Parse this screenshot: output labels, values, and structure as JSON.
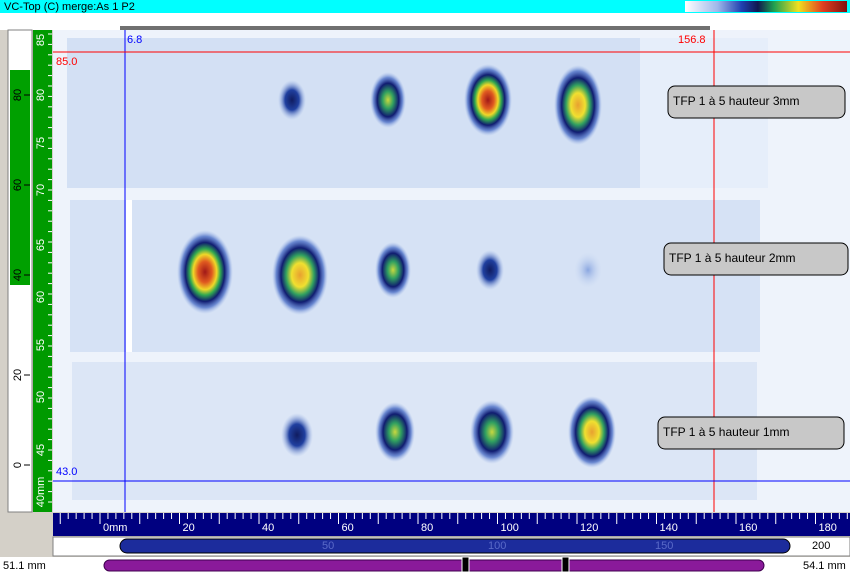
{
  "window": {
    "title": "VC-Top (C) merge:As 1 P2"
  },
  "cursors": {
    "x_blue": "6.8",
    "x_red": "156.8",
    "y_red": "85.0",
    "y_blue": "43.0"
  },
  "annotations": [
    "TFP 1 à 5 hauteur 3mm",
    "TFP 1 à 5 hauteur 2mm",
    "TFP 1 à 5 hauteur 1mm"
  ],
  "outer_ruler": [
    "80",
    "60",
    "40",
    "20",
    "0"
  ],
  "y_ruler": [
    "85",
    "80",
    "75",
    "70",
    "65",
    "60",
    "55",
    "50",
    "45",
    "40mm"
  ],
  "x_ruler": [
    "0mm",
    "20",
    "40",
    "60",
    "80",
    "100",
    "120",
    "140",
    "160",
    "180"
  ],
  "scroll_ruler": [
    "50",
    "100",
    "150",
    "200"
  ],
  "status": {
    "left": "51.1 mm",
    "right": "54.1 mm"
  }
}
